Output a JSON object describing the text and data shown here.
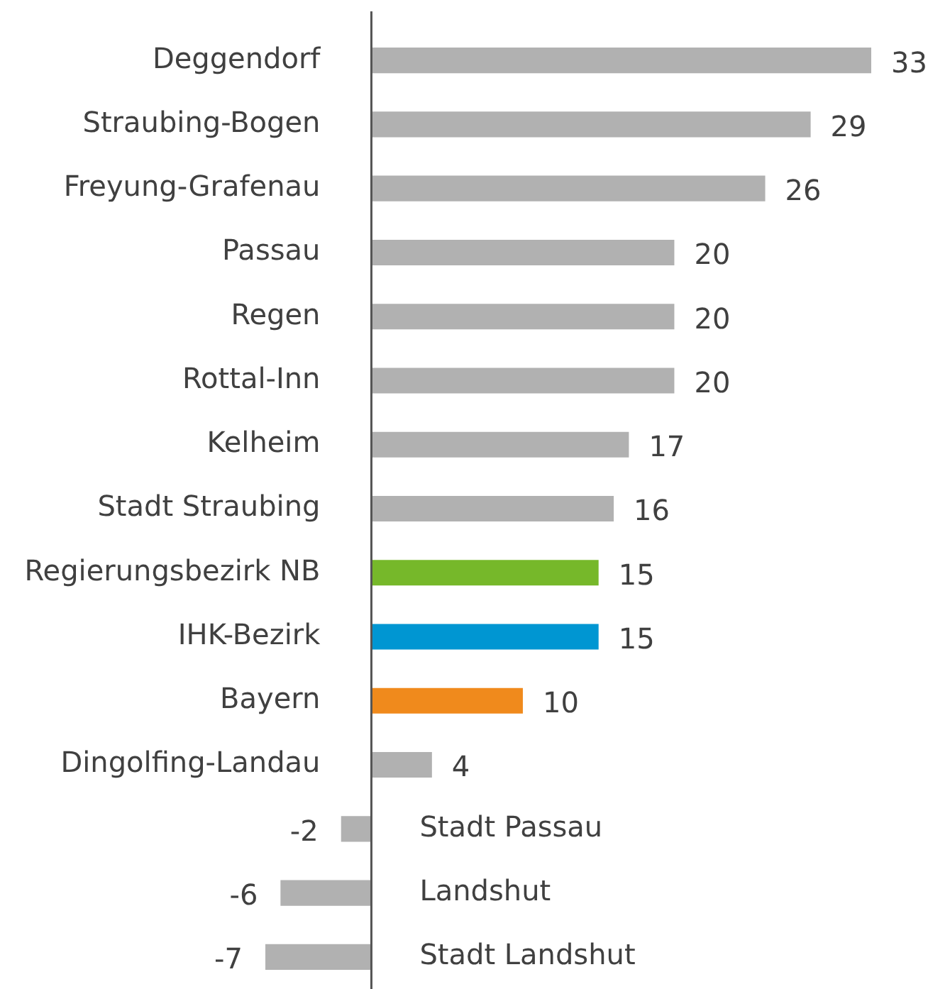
{
  "chart_data": {
    "type": "bar",
    "orientation": "horizontal",
    "data_labels": true,
    "legend": false,
    "categories": [
      "Deggendorf",
      "Straubing-Bogen",
      "Freyung-Grafenau",
      "Passau",
      "Regen",
      "Rottal-Inn",
      "Kelheim",
      "Stadt Straubing",
      "Regierungsbezirk NB",
      "IHK-Bezirk",
      "Bayern",
      "Dingolfing-Landau",
      "Stadt Passau",
      "Landshut",
      "Stadt Landshut"
    ],
    "values": [
      33,
      29,
      26,
      20,
      20,
      20,
      17,
      16,
      15,
      15,
      10,
      4,
      -2,
      -6,
      -7
    ],
    "colors": [
      "#b1b1b1",
      "#b1b1b1",
      "#b1b1b1",
      "#b1b1b1",
      "#b1b1b1",
      "#b1b1b1",
      "#b1b1b1",
      "#b1b1b1",
      "#76b82a",
      "#0096d2",
      "#f08a1c",
      "#b1b1b1",
      "#b1b1b1",
      "#b1b1b1",
      "#b1b1b1"
    ]
  }
}
